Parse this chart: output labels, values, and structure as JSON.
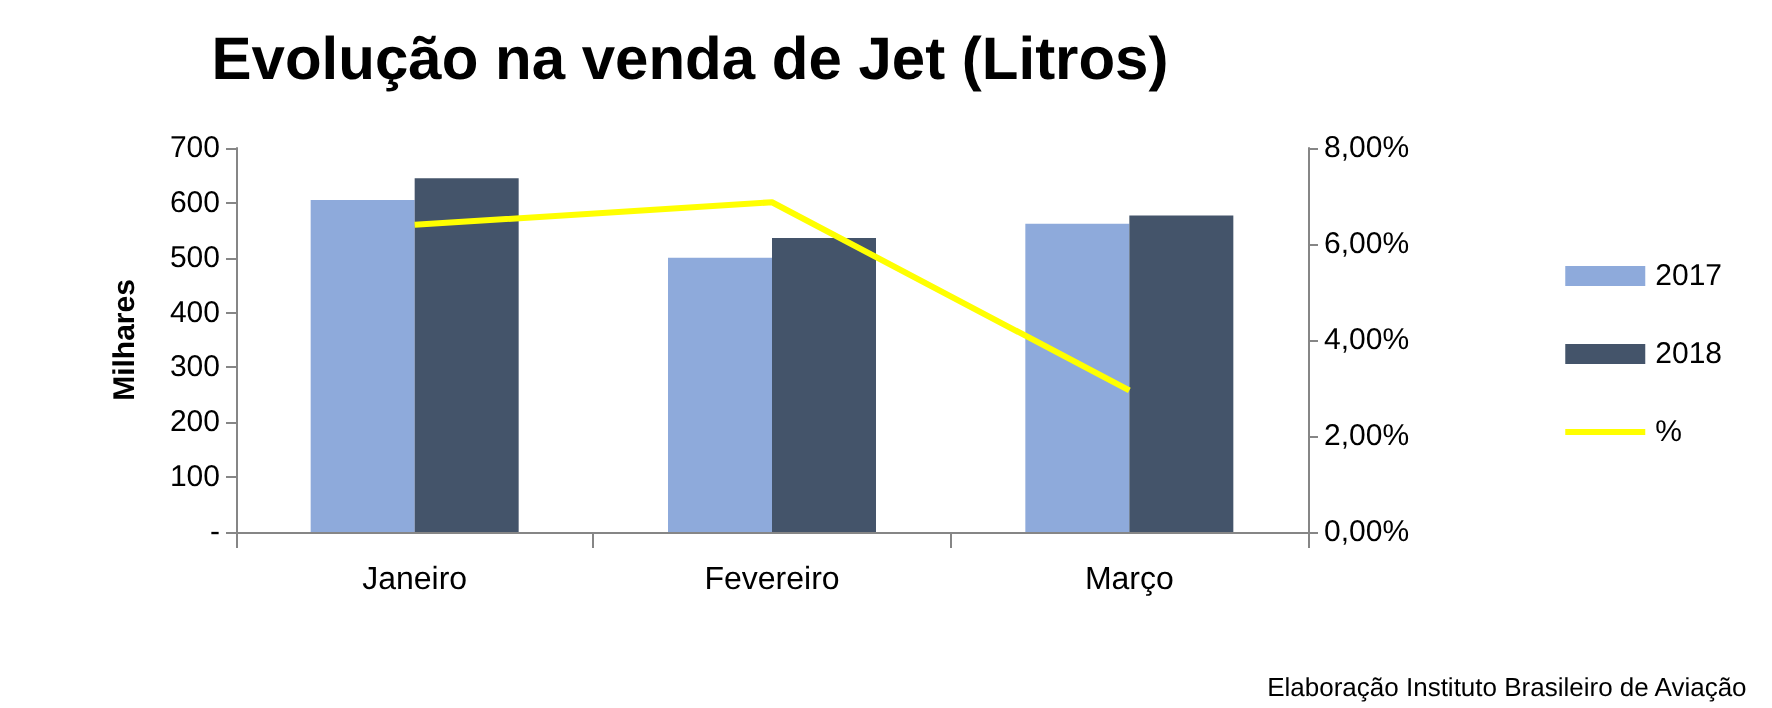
{
  "chart_data": {
    "type": "bar",
    "title": "Evolução na venda de Jet (Litros)",
    "ylabel": "Milhares",
    "categories": [
      "Janeiro",
      "Fevereiro",
      "Março"
    ],
    "series": [
      {
        "name": "2017",
        "color": "#8eaadb",
        "values": [
          605,
          500,
          562
        ]
      },
      {
        "name": "2018",
        "color": "#44546a",
        "values": [
          645,
          536,
          577
        ]
      },
      {
        "name": "%",
        "type": "line",
        "axis": "y2",
        "color": "#ffff00",
        "values": [
          6.4,
          6.87,
          2.95
        ]
      }
    ],
    "ylim": [
      0,
      700
    ],
    "yticks": [
      {
        "value": 0,
        "label": "-"
      },
      100,
      200,
      300,
      400,
      500,
      600,
      700
    ],
    "y2lim": [
      0,
      8
    ],
    "y2ticks": [
      {
        "value": 0,
        "label": "0,00%"
      },
      {
        "value": 2,
        "label": "2,00%"
      },
      {
        "value": 4,
        "label": "4,00%"
      },
      {
        "value": 6,
        "label": "6,00%"
      },
      {
        "value": 8,
        "label": "8,00%"
      }
    ],
    "grid": false,
    "legend": "right",
    "marker": "none",
    "annotations": [
      "Elaboração Instituto Brasileiro de Aviação"
    ]
  }
}
